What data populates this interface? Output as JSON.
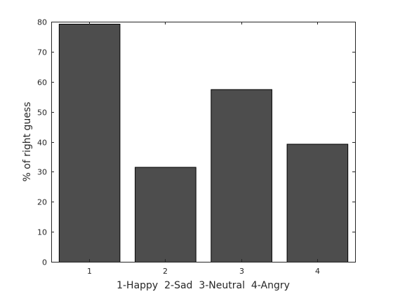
{
  "chart_data": {
    "type": "bar",
    "categories": [
      "1",
      "2",
      "3",
      "4"
    ],
    "values": [
      79.3,
      31.6,
      57.5,
      39.3
    ],
    "title": "",
    "xlabel": "1-Happy  2-Sad  3-Neutral  4-Angry",
    "ylabel": "% of right guess",
    "ylim": [
      0,
      80
    ],
    "yticks": [
      0,
      10,
      20,
      30,
      40,
      50,
      60,
      70,
      80
    ],
    "xlim": [
      0.5,
      4.5
    ],
    "grid": false,
    "legend": "none",
    "bar_color": "#4d4d4d",
    "edge_color": "#000000",
    "axis_color": "#262626"
  }
}
